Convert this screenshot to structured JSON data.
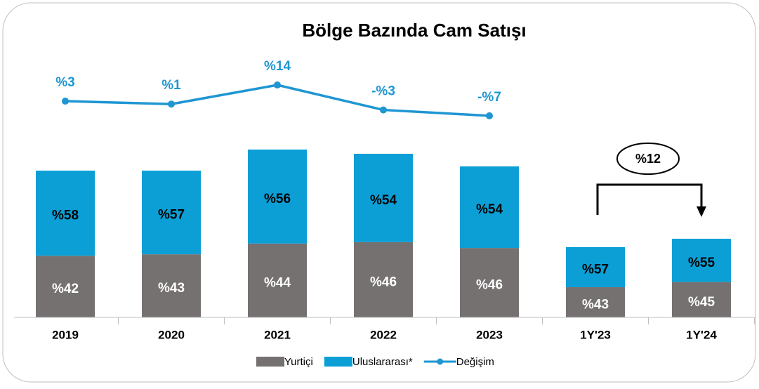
{
  "chart_data": {
    "type": "bar",
    "title": "Bölge Bazında Cam Satışı",
    "categories": [
      "2019",
      "2020",
      "2021",
      "2022",
      "2023",
      "1Y'23",
      "1Y'24"
    ],
    "totals": [
      209,
      209,
      239,
      233,
      215,
      100,
      112
    ],
    "ylim": [
      0,
      300
    ],
    "series": [
      {
        "name": "Yurtiçi",
        "color": "#767171",
        "values": [
          42,
          43,
          44,
          46,
          46,
          43,
          45
        ],
        "value_labels": [
          "%42",
          "%43",
          "%44",
          "%46",
          "%46",
          "%43",
          "%45"
        ]
      },
      {
        "name": "Uluslararası*",
        "color": "#0b9fd6",
        "values": [
          58,
          57,
          56,
          54,
          54,
          57,
          55
        ],
        "value_labels": [
          "%58",
          "%57",
          "%56",
          "%54",
          "%54",
          "%57",
          "%55"
        ]
      },
      {
        "name": "Değişim",
        "type": "line",
        "axis": "y2",
        "color": "#1e96d2",
        "values": [
          3,
          1,
          14,
          -3,
          -7,
          null,
          null
        ],
        "value_labels": [
          "%3",
          "%1",
          "%14",
          "-%3",
          "-%7",
          null,
          null
        ]
      }
    ],
    "y2lim": [
      -10,
      20
    ],
    "annotation": "%12"
  }
}
